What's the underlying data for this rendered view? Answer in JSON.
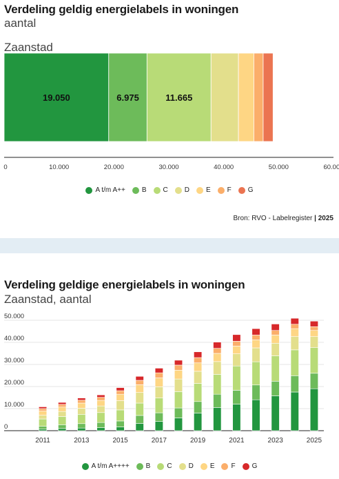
{
  "chart1": {
    "title": "Verdeling geldig energielabels in woningen",
    "subtitle": "aantal",
    "category_label": "Zaanstad",
    "source_text": "Bron: RVO - Labelregister",
    "source_year": "2025"
  },
  "chart2": {
    "title": "Verdeling geldige energielabels in woningen",
    "subtitle": "Zaanstad, aantal"
  },
  "colors": {
    "A": "#22963f",
    "B": "#6dbb5a",
    "C": "#b8db77",
    "D": "#e3df8c",
    "E": "#fed684",
    "F": "#fbae6a",
    "G": "#eb7451",
    "G2": "#d7282a"
  },
  "chart_data": [
    {
      "type": "bar",
      "orientation": "horizontal",
      "stacked": true,
      "categories": [
        "Zaanstad"
      ],
      "series": [
        {
          "name": "A t/m A++",
          "values": [
            19050
          ],
          "label": "19.050"
        },
        {
          "name": "B",
          "values": [
            6975
          ],
          "label": "6.975"
        },
        {
          "name": "C",
          "values": [
            11665
          ],
          "label": "11.665"
        },
        {
          "name": "D",
          "values": [
            5000
          ]
        },
        {
          "name": "E",
          "values": [
            2800
          ]
        },
        {
          "name": "F",
          "values": [
            1700
          ]
        },
        {
          "name": "G",
          "values": [
            1800
          ]
        }
      ],
      "xlim": [
        0,
        60000
      ],
      "ticks": [
        "0",
        "10.000",
        "20.000",
        "30.000",
        "40.000",
        "50.000",
        "60.000"
      ],
      "legend": "bottom"
    },
    {
      "type": "bar",
      "stacked": true,
      "x": [
        2011,
        2012,
        2013,
        2014,
        2015,
        2016,
        2017,
        2018,
        2019,
        2020,
        2021,
        2022,
        2023,
        2024,
        2025
      ],
      "tick_labels": [
        "2011",
        "2013",
        "2015",
        "2017",
        "2019",
        "2021",
        "2023",
        "2025"
      ],
      "series": [
        {
          "name": "A t/m A++++",
          "values": [
            700,
            1000,
            1200,
            1400,
            1700,
            3300,
            4200,
            5800,
            8000,
            10500,
            12000,
            14000,
            15800,
            17500,
            19000
          ]
        },
        {
          "name": "B",
          "values": [
            1300,
            1700,
            2000,
            2300,
            2700,
            3600,
            3900,
            4500,
            5200,
            6000,
            6300,
            6700,
            6600,
            7400,
            7000
          ]
        },
        {
          "name": "C",
          "values": [
            3300,
            3700,
            4200,
            4500,
            5000,
            5600,
            6700,
            7400,
            8200,
            9000,
            11000,
            10500,
            11500,
            11700,
            11600
          ]
        },
        {
          "name": "D",
          "values": [
            1700,
            2300,
            2800,
            3000,
            4200,
            4800,
            5100,
            5700,
            5500,
            5800,
            5500,
            6300,
            5700,
            6000,
            5000
          ]
        },
        {
          "name": "E",
          "values": [
            1900,
            2000,
            2300,
            2500,
            2900,
            3500,
            4000,
            4000,
            3800,
            3700,
            3500,
            3600,
            3700,
            3600,
            2800
          ]
        },
        {
          "name": "F",
          "values": [
            1100,
            1200,
            1300,
            1400,
            1600,
            2000,
            2300,
            2300,
            2400,
            2300,
            2200,
            2200,
            2100,
            2000,
            1700
          ]
        },
        {
          "name": "G",
          "values": [
            800,
            900,
            1000,
            1100,
            1400,
            1800,
            2100,
            2200,
            2600,
            2800,
            3000,
            2900,
            2900,
            2700,
            2500
          ]
        }
      ],
      "ylim": [
        0,
        50000
      ],
      "yticks": [
        "0",
        "10.000",
        "20.000",
        "30.000",
        "40.000",
        "50.000"
      ],
      "grid": true,
      "legend": "bottom"
    }
  ]
}
